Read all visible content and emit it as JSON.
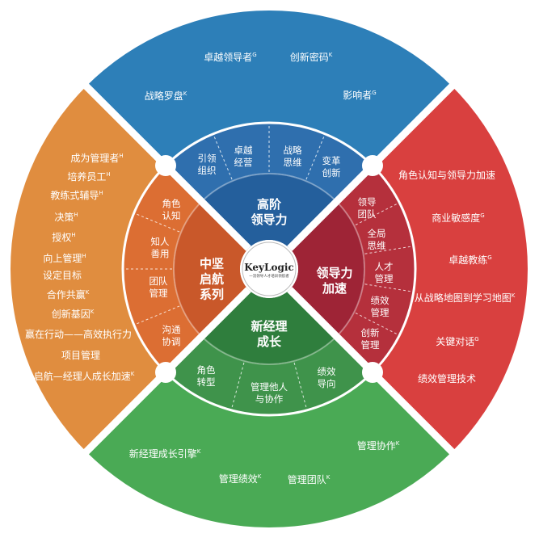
{
  "colors": {
    "blue_outer": "#2d7fb8",
    "blue_mid": "#2f6fae",
    "blue_core": "#245f9c",
    "red_outer": "#d9403f",
    "red_mid": "#b5303c",
    "red_core": "#9e2436",
    "green_outer": "#4aaa55",
    "green_mid": "#3f934b",
    "green_core": "#2f7e3d",
    "orange_outer": "#e08d3f",
    "orange_mid": "#dc6e33",
    "orange_core": "#c9582a",
    "divider": "#ffffff"
  },
  "logo": {
    "name": "KeyLogic",
    "tagline": "一流领导人才培训领航者"
  },
  "quadrants": {
    "top": {
      "core": [
        "高阶",
        "领导力"
      ],
      "mid": [
        [
          "引领",
          "组织"
        ],
        [
          "卓越",
          "经营"
        ],
        [
          "战略",
          "思维"
        ],
        [
          "变革",
          "创新"
        ]
      ],
      "outer": [
        {
          "text": "卓越领导者",
          "sup": "G"
        },
        {
          "text": "创新密码",
          "sup": "K"
        },
        {
          "text": "战略罗盘",
          "sup": "K"
        },
        {
          "text": "影响者",
          "sup": "G"
        }
      ]
    },
    "right": {
      "core": [
        "领导力",
        "加速"
      ],
      "mid": [
        [
          "领导",
          "团队"
        ],
        [
          "全局",
          "思维"
        ],
        [
          "人才",
          "管理"
        ],
        [
          "绩效",
          "管理"
        ],
        [
          "创新",
          "管理"
        ]
      ],
      "outer": [
        {
          "text": "角色认知与领导力加速",
          "sup": ""
        },
        {
          "text": "商业敏感度",
          "sup": "G"
        },
        {
          "text": "卓越教练",
          "sup": "G"
        },
        {
          "text": "从战略地图到学习地图",
          "sup": "K"
        },
        {
          "text": "关键对话",
          "sup": "G"
        },
        {
          "text": "绩效管理技术",
          "sup": ""
        }
      ]
    },
    "bottom": {
      "core": [
        "新经理",
        "成长"
      ],
      "mid": [
        [
          "角色",
          "转型"
        ],
        [
          "管理他人",
          "与协作"
        ],
        [
          "绩效",
          "导向"
        ]
      ],
      "outer": [
        {
          "text": "新经理成长引擎",
          "sup": "K"
        },
        {
          "text": "管理协作",
          "sup": "K"
        },
        {
          "text": "管理绩效",
          "sup": "K"
        },
        {
          "text": "管理团队",
          "sup": "K"
        }
      ]
    },
    "left": {
      "core": [
        "中坚",
        "启航",
        "系列"
      ],
      "mid": [
        [
          "角色",
          "认知"
        ],
        [
          "知人",
          "善用"
        ],
        [
          "团队",
          "管理"
        ],
        [
          "沟通",
          "协调"
        ]
      ],
      "outer": [
        {
          "text": "成为管理者",
          "sup": "H"
        },
        {
          "text": "培养员工",
          "sup": "H"
        },
        {
          "text": "教练式辅导",
          "sup": "H"
        },
        {
          "text": "决策",
          "sup": "H"
        },
        {
          "text": "授权",
          "sup": "H"
        },
        {
          "text": "向上管理",
          "sup": "H"
        },
        {
          "text": "设定目标",
          "sup": ""
        },
        {
          "text": "合作共赢",
          "sup": "K"
        },
        {
          "text": "创新基因",
          "sup": "K"
        },
        {
          "text": "赢在行动——高效执行力",
          "sup": ""
        },
        {
          "text": "项目管理",
          "sup": ""
        },
        {
          "text": "启航—经理人成长加速",
          "sup": "K"
        }
      ]
    }
  }
}
